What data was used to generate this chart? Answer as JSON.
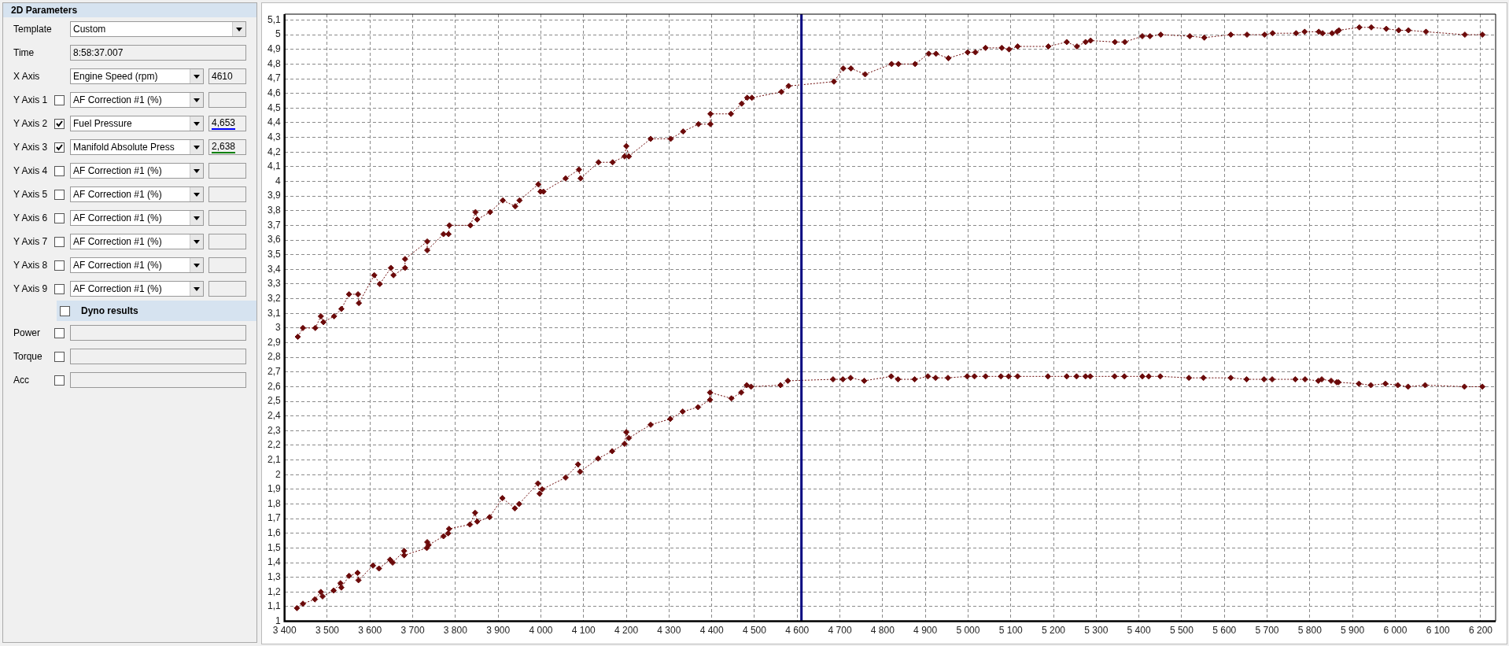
{
  "chart_data": [
    {
      "type": "other",
      "title": "2D Parameters",
      "annotations": [
        "Template",
        "Custom",
        "Time",
        "8:58:37.007",
        "X Axis",
        "Engine Speed (rpm)",
        "4610",
        "Y Axis 1",
        "AF Correction #1 (%)",
        "Y Axis 2",
        "Fuel Pressure",
        "4,653",
        "Y Axis 3",
        "Manifold Absolute Press",
        "2,638",
        "Y Axis 4",
        "AF Correction #1 (%)",
        "Y Axis 5",
        "AF Correction #1 (%)",
        "Y Axis 6",
        "AF Correction #1 (%)",
        "Y Axis 7",
        "AF Correction #1 (%)",
        "Y Axis 8",
        "AF Correction #1 (%)",
        "Y Axis 9",
        "AF Correction #1 (%)",
        "Dyno results",
        "Power",
        "Torque",
        "Acc"
      ]
    },
    {
      "type": "line",
      "marker": "diamond",
      "line_style": "dotted",
      "grid": true,
      "xlim": [
        3400,
        6235
      ],
      "ylim": [
        1,
        5.14
      ],
      "series": [
        {
          "color": "#6b0a0a",
          "x": [
            3431,
            3443,
            3472,
            3485,
            3491,
            3516,
            3533,
            3551,
            3572,
            3574,
            3610,
            3623,
            3649,
            3655,
            3682,
            3682,
            3734,
            3734,
            3772,
            3784,
            3786,
            3835,
            3847,
            3851,
            3881,
            3911,
            3940,
            3950,
            3994,
            3999,
            4006,
            4058,
            4089,
            4093,
            4135,
            4168,
            4196,
            4200,
            4206,
            4257,
            4304,
            4333,
            4369,
            4397,
            4397,
            4445,
            4470,
            4483,
            4494,
            4563,
            4580,
            4686,
            4708,
            4726,
            4759,
            4821,
            4837,
            4876,
            4908,
            4925,
            4954,
            4999,
            5017,
            5041,
            5079,
            5096,
            5116,
            5188,
            5231,
            5255,
            5275,
            5287,
            5344,
            5367,
            5408,
            5426,
            5451,
            5519,
            5553,
            5615,
            5653,
            5694,
            5713,
            5768,
            5788,
            5821,
            5830,
            5852,
            5864,
            5868,
            5916,
            5944,
            5979,
            6008,
            6031,
            6072,
            6163,
            6204
          ],
          "values": [
            2.94,
            3.0,
            3.0,
            3.08,
            3.04,
            3.08,
            3.13,
            3.23,
            3.23,
            3.17,
            3.36,
            3.3,
            3.41,
            3.36,
            3.41,
            3.47,
            3.59,
            3.53,
            3.64,
            3.64,
            3.7,
            3.7,
            3.79,
            3.74,
            3.79,
            3.87,
            3.83,
            3.87,
            3.98,
            3.93,
            3.93,
            4.02,
            4.08,
            4.02,
            4.13,
            4.13,
            4.17,
            4.24,
            4.17,
            4.29,
            4.29,
            4.34,
            4.39,
            4.39,
            4.46,
            4.46,
            4.53,
            4.57,
            4.57,
            4.61,
            4.65,
            4.68,
            4.77,
            4.77,
            4.73,
            4.8,
            4.8,
            4.8,
            4.87,
            4.87,
            4.84,
            4.88,
            4.88,
            4.91,
            4.91,
            4.9,
            4.92,
            4.92,
            4.95,
            4.92,
            4.95,
            4.96,
            4.95,
            4.95,
            4.99,
            4.99,
            5.0,
            4.99,
            4.98,
            5.0,
            5.0,
            5.0,
            5.01,
            5.01,
            5.02,
            5.02,
            5.01,
            5.01,
            5.02,
            5.03,
            5.05,
            5.05,
            5.04,
            5.03,
            5.03,
            5.02,
            5.0,
            5.0
          ]
        },
        {
          "color": "#6b0a0a",
          "x": [
            3429,
            3443,
            3471,
            3485,
            3489,
            3515,
            3531,
            3533,
            3551,
            3571,
            3573,
            3607,
            3621,
            3647,
            3653,
            3680,
            3680,
            3733,
            3734,
            3737,
            3772,
            3783,
            3785,
            3834,
            3846,
            3851,
            3880,
            3910,
            3939,
            3949,
            3993,
            3997,
            4003,
            4058,
            4087,
            4092,
            4134,
            4167,
            4196,
            4200,
            4206,
            4257,
            4303,
            4332,
            4368,
            4396,
            4396,
            4446,
            4469,
            4482,
            4492,
            4561,
            4578,
            4684,
            4707,
            4725,
            4757,
            4820,
            4836,
            4875,
            4906,
            4924,
            4953,
            4998,
            5015,
            5041,
            5077,
            5095,
            5116,
            5187,
            5231,
            5254,
            5275,
            5286,
            5343,
            5366,
            5408,
            5423,
            5450,
            5517,
            5551,
            5615,
            5652,
            5693,
            5712,
            5766,
            5789,
            5820,
            5828,
            5850,
            5863,
            5867,
            5915,
            5943,
            5977,
            6006,
            6030,
            6070,
            6162,
            6204
          ],
          "values": [
            1.09,
            1.12,
            1.15,
            1.2,
            1.17,
            1.21,
            1.26,
            1.23,
            1.31,
            1.33,
            1.28,
            1.38,
            1.36,
            1.42,
            1.4,
            1.48,
            1.45,
            1.5,
            1.54,
            1.52,
            1.58,
            1.6,
            1.63,
            1.66,
            1.74,
            1.68,
            1.71,
            1.84,
            1.77,
            1.8,
            1.94,
            1.87,
            1.9,
            1.98,
            2.07,
            2.02,
            2.11,
            2.16,
            2.21,
            2.29,
            2.25,
            2.34,
            2.38,
            2.43,
            2.46,
            2.51,
            2.56,
            2.52,
            2.56,
            2.61,
            2.6,
            2.61,
            2.64,
            2.65,
            2.65,
            2.66,
            2.64,
            2.67,
            2.65,
            2.65,
            2.67,
            2.66,
            2.66,
            2.67,
            2.67,
            2.67,
            2.67,
            2.67,
            2.67,
            2.67,
            2.67,
            2.67,
            2.67,
            2.67,
            2.67,
            2.67,
            2.67,
            2.67,
            2.67,
            2.66,
            2.66,
            2.66,
            2.65,
            2.65,
            2.65,
            2.65,
            2.65,
            2.64,
            2.65,
            2.64,
            2.63,
            2.63,
            2.62,
            2.61,
            2.62,
            2.61,
            2.6,
            2.61,
            2.6,
            2.6
          ]
        }
      ],
      "ref_lines": [
        {
          "axis": "x",
          "value": 4610,
          "color": "#000080"
        }
      ],
      "xticks": [
        {
          "value": 3400,
          "label": "3 400"
        },
        {
          "value": 3500,
          "label": "3 500"
        },
        {
          "value": 3600,
          "label": "3 600"
        },
        {
          "value": 3700,
          "label": "3 700"
        },
        {
          "value": 3800,
          "label": "3 800"
        },
        {
          "value": 3900,
          "label": "3 900"
        },
        {
          "value": 4000,
          "label": "4 000"
        },
        {
          "value": 4100,
          "label": "4 100"
        },
        {
          "value": 4200,
          "label": "4 200"
        },
        {
          "value": 4300,
          "label": "4 300"
        },
        {
          "value": 4400,
          "label": "4 400"
        },
        {
          "value": 4500,
          "label": "4 500"
        },
        {
          "value": 4600,
          "label": "4 600"
        },
        {
          "value": 4700,
          "label": "4 700"
        },
        {
          "value": 4800,
          "label": "4 800"
        },
        {
          "value": 4900,
          "label": "4 900"
        },
        {
          "value": 5000,
          "label": "5 000"
        },
        {
          "value": 5100,
          "label": "5 100"
        },
        {
          "value": 5200,
          "label": "5 200"
        },
        {
          "value": 5300,
          "label": "5 300"
        },
        {
          "value": 5400,
          "label": "5 400"
        },
        {
          "value": 5500,
          "label": "5 500"
        },
        {
          "value": 5600,
          "label": "5 600"
        },
        {
          "value": 5700,
          "label": "5 700"
        },
        {
          "value": 5800,
          "label": "5 800"
        },
        {
          "value": 5900,
          "label": "5 900"
        },
        {
          "value": 6000,
          "label": "6 000"
        },
        {
          "value": 6100,
          "label": "6 100"
        },
        {
          "value": 6200,
          "label": "6 200"
        }
      ],
      "yticks": [
        1,
        {
          "value": 1.1,
          "label": "1,1"
        },
        {
          "value": 1.2,
          "label": "1,2"
        },
        {
          "value": 1.3,
          "label": "1,3"
        },
        {
          "value": 1.4,
          "label": "1,4"
        },
        {
          "value": 1.5,
          "label": "1,5"
        },
        {
          "value": 1.6,
          "label": "1,6"
        },
        {
          "value": 1.7,
          "label": "1,7"
        },
        {
          "value": 1.8,
          "label": "1,8"
        },
        {
          "value": 1.9,
          "label": "1,9"
        },
        2,
        {
          "value": 2.1,
          "label": "2,1"
        },
        {
          "value": 2.2,
          "label": "2,2"
        },
        {
          "value": 2.3,
          "label": "2,3"
        },
        {
          "value": 2.4,
          "label": "2,4"
        },
        {
          "value": 2.5,
          "label": "2,5"
        },
        {
          "value": 2.6,
          "label": "2,6"
        },
        {
          "value": 2.7,
          "label": "2,7"
        },
        {
          "value": 2.8,
          "label": "2,8"
        },
        {
          "value": 2.9,
          "label": "2,9"
        },
        3,
        {
          "value": 3.1,
          "label": "3,1"
        },
        {
          "value": 3.2,
          "label": "3,2"
        },
        {
          "value": 3.3,
          "label": "3,3"
        },
        {
          "value": 3.4,
          "label": "3,4"
        },
        {
          "value": 3.5,
          "label": "3,5"
        },
        {
          "value": 3.6,
          "label": "3,6"
        },
        {
          "value": 3.7,
          "label": "3,7"
        },
        {
          "value": 3.8,
          "label": "3,8"
        },
        {
          "value": 3.9,
          "label": "3,9"
        },
        4,
        {
          "value": 4.1,
          "label": "4,1"
        },
        {
          "value": 4.2,
          "label": "4,2"
        },
        {
          "value": 4.3,
          "label": "4,3"
        },
        {
          "value": 4.4,
          "label": "4,4"
        },
        {
          "value": 4.5,
          "label": "4,5"
        },
        {
          "value": 4.6,
          "label": "4,6"
        },
        {
          "value": 4.7,
          "label": "4,7"
        },
        {
          "value": 4.8,
          "label": "4,8"
        },
        {
          "value": 4.9,
          "label": "4,9"
        },
        5,
        {
          "value": 5.1,
          "label": "5,1"
        }
      ]
    }
  ]
}
